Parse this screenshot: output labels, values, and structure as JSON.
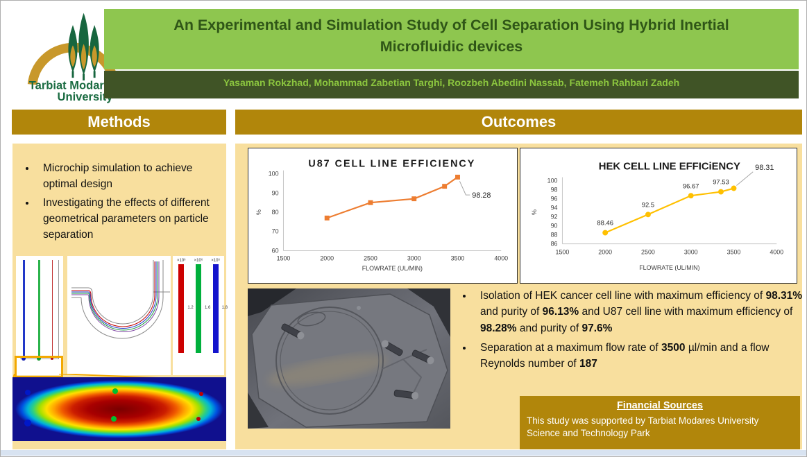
{
  "header": {
    "logo": {
      "name_line1": "Tarbiat Modares",
      "name_line2": "University"
    },
    "title_line1": "An Experimental and Simulation Study of Cell Separation Using Hybrid Inertial",
    "title_line2": "Microfluidic devices",
    "authors": "Yasaman Rokzhad, Mohammad Zabetian Targhi, Roozbeh Abedini Nassab, Fatemeh Rahbari Zadeh"
  },
  "sections": {
    "methods": "Methods",
    "outcomes": "Outcomes"
  },
  "methods": {
    "bullets": [
      "Microchip simulation to achieve optimal design",
      "Investigating the effects of different geometrical parameters on particle separation"
    ],
    "simulation": {
      "colorbars": [
        {
          "exp": "×10⁶",
          "value": "1.2",
          "color": "#CC0000"
        },
        {
          "exp": "×10⁶",
          "value": "1.6",
          "color": "#00B03C"
        },
        {
          "exp": "×10⁶",
          "value": "1.8",
          "color": "#1414CC"
        }
      ]
    }
  },
  "chart_data": [
    {
      "type": "line",
      "title": "U87 CELL LINE EFFICIENCY",
      "xlabel": "FLOWRATE (UL/MIN)",
      "ylabel": "%",
      "xlim": [
        1500,
        4000
      ],
      "ylim": [
        60,
        100
      ],
      "xticks": [
        1500,
        2000,
        2500,
        3000,
        3500,
        4000
      ],
      "yticks": [
        60,
        70,
        80,
        90,
        100
      ],
      "x": [
        2000,
        2500,
        3000,
        3350,
        3500
      ],
      "y": [
        77,
        85,
        87,
        93.5,
        98.28
      ],
      "color": "#ED7D31",
      "marker": "square",
      "annotation": "98.28",
      "grid": false,
      "legend": "none"
    },
    {
      "type": "line",
      "title": "HEK CELL LINE EFFICiENCY",
      "xlabel": "FLOWRATE (UL/MIN)",
      "ylabel": "%",
      "xlim": [
        1500,
        4000
      ],
      "ylim": [
        86,
        100
      ],
      "xticks": [
        1500,
        2000,
        2500,
        3000,
        3500,
        4000
      ],
      "yticks": [
        86,
        88,
        90,
        92,
        94,
        96,
        98,
        100
      ],
      "x": [
        2000,
        2500,
        3000,
        3350,
        3500
      ],
      "y": [
        88.46,
        92.5,
        96.67,
        97.53,
        98.31
      ],
      "point_labels": [
        "88.46",
        "92.5",
        "96.67",
        "97.53",
        null
      ],
      "color": "#FFC000",
      "marker": "circle",
      "annotation": "98.31",
      "grid": false,
      "legend": "none"
    }
  ],
  "outcomes": {
    "bullets": [
      {
        "segments": [
          {
            "t": "Isolation of HEK cancer cell line with maximum efficiency of "
          },
          {
            "t": "98.31%",
            "b": true
          },
          {
            "t": " and purity of "
          },
          {
            "t": "96.13%",
            "b": true
          },
          {
            "t": " and U87 cell line with maximum efficiency of "
          },
          {
            "t": "98.28%",
            "b": true
          },
          {
            "t": " and purity of "
          },
          {
            "t": "97.6%",
            "b": true
          }
        ]
      },
      {
        "segments": [
          {
            "t": "Separation at a maximum flow rate of "
          },
          {
            "t": "3500",
            "b": true
          },
          {
            "t": " µl/min and a flow Reynolds number of "
          },
          {
            "t": "187",
            "b": true
          }
        ]
      }
    ],
    "financial": {
      "title": "Financial Sources",
      "body": "This study was supported by Tarbiat Modares University Science and Technology Park"
    }
  },
  "colors": {
    "header_green": "#8EC64F",
    "dark_green": "#405426",
    "title_text": "#2F5617",
    "gold": "#B1860B",
    "tan": "#F8DF9E",
    "u87_series": "#ED7D31",
    "hek_series": "#FFC000",
    "callout": "#F2A800",
    "bottom_strip": "#D8E3F1"
  }
}
